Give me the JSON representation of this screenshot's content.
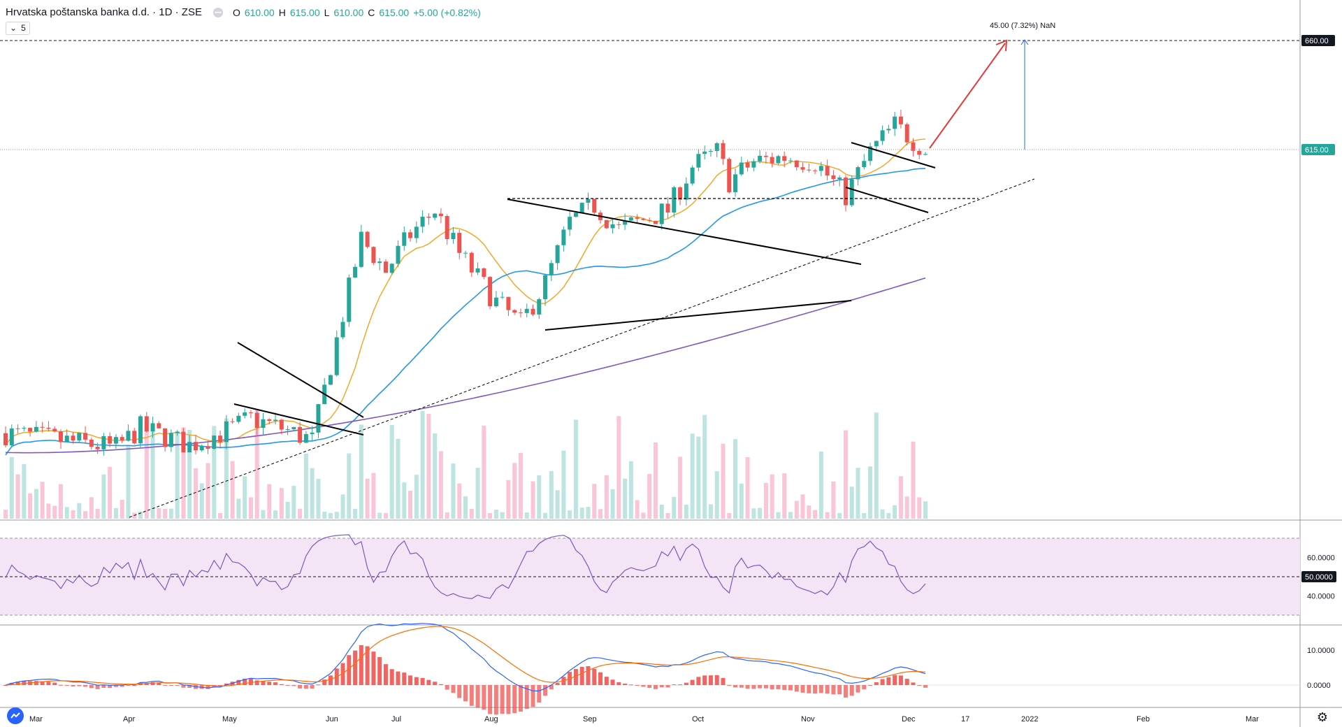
{
  "header": {
    "symbol_title": "Hrvatska poštanska banka d.d. · 1D · ZSE",
    "ohlc": [
      {
        "label": "O",
        "value": "610.00"
      },
      {
        "label": "H",
        "value": "615.00"
      },
      {
        "label": "L",
        "value": "610.00"
      },
      {
        "label": "C",
        "value": "615.00"
      }
    ],
    "change": "+5.00 (+0.82%)",
    "indicator_toggle_count": "5"
  },
  "colors": {
    "up": "#26a69a",
    "down": "#ef5350",
    "ma_fast": "#f7a21b",
    "ma_mid": "#2196f3",
    "ma_slow": "#7e57c2",
    "rsi": "#7e57c2",
    "rsi_band": "#f3e5f5",
    "macd": "#2962ff",
    "signal": "#ff6d00",
    "arrow": "#e53935",
    "measure": "#2962ff"
  },
  "chart_data": [
    {
      "type": "candlestick",
      "title": "Hrvatska poštanska banka d.d. · 1D · ZSE",
      "price_labels": [
        "660.00",
        "615.00"
      ],
      "current_price": 615,
      "target_price": 660,
      "measure_label": "45.00 (7.32%) NaN",
      "x_tick_labels": [
        "Mar",
        "Apr",
        "May",
        "Jun",
        "Jul",
        "Aug",
        "Sep",
        "Oct",
        "Nov",
        "Dec",
        "17",
        "2022",
        "Feb",
        "Mar"
      ],
      "moving_averages": [
        {
          "color": "#f7a21b"
        },
        {
          "color": "#2196f3"
        },
        {
          "color": "#7e57c2"
        }
      ],
      "volume": true,
      "annotations": [
        "pennant patterns",
        "trend lines",
        "target arrow"
      ]
    },
    {
      "type": "line",
      "y_tick_labels": [
        "60.0000",
        "50.0000",
        "40.0000"
      ],
      "bands": [
        70,
        30
      ],
      "midline": 50,
      "current_value": 50
    },
    {
      "type": "bar",
      "y_tick_labels": [
        "10.0000",
        "0.0000"
      ]
    }
  ]
}
